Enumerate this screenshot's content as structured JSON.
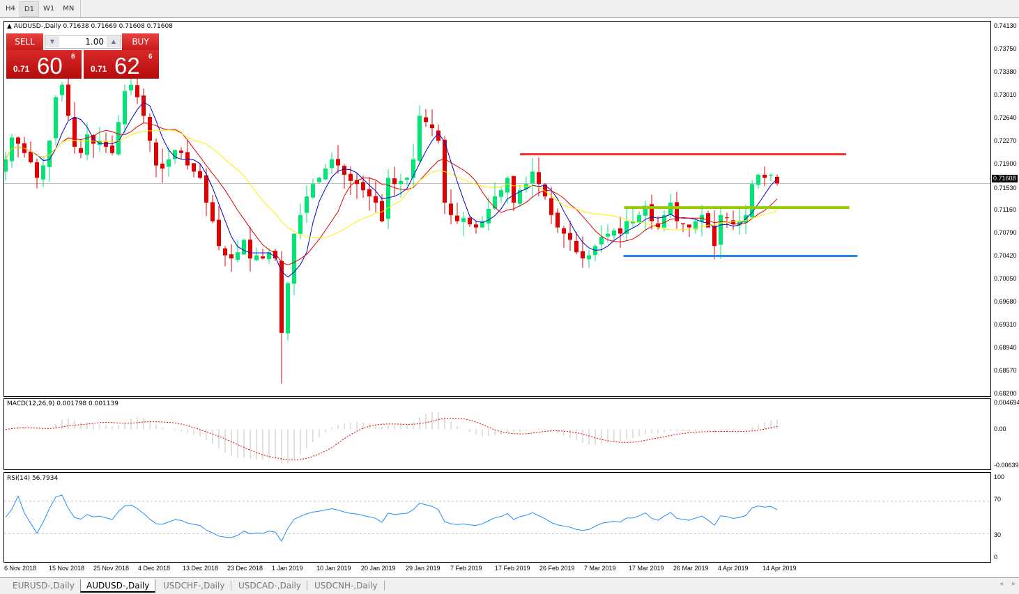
{
  "timeframes": [
    {
      "label": "H4",
      "active": false
    },
    {
      "label": "D1",
      "active": true
    },
    {
      "label": "W1",
      "active": false
    },
    {
      "label": "MN",
      "active": false
    }
  ],
  "chart": {
    "header": "AUDUSD-,Daily  0.71638 0.71669 0.71608 0.71608",
    "symbol": "AUDUSD-,Daily",
    "current_price": "0.71608"
  },
  "trade_panel": {
    "sell_label": "SELL",
    "buy_label": "BUY",
    "lot": "1.00",
    "sell": {
      "prefix": "0.71",
      "big": "60",
      "sup": "8"
    },
    "buy": {
      "prefix": "0.71",
      "big": "62",
      "sup": "6"
    }
  },
  "price_axis": [
    "0.74130",
    "0.73750",
    "0.73380",
    "0.73010",
    "0.72640",
    "0.72270",
    "0.71900",
    "0.71530",
    "0.71160",
    "0.70790",
    "0.70420",
    "0.70050",
    "0.69680",
    "0.69310",
    "0.68940",
    "0.68570",
    "0.68200"
  ],
  "macd": {
    "label": "MACD(12,26,9) 0.001798 0.001139",
    "axis": [
      "0.004694",
      "0.00",
      "-0.00639"
    ]
  },
  "rsi": {
    "label": "RSI(14) 56.7934",
    "axis": [
      "100",
      "70",
      "30",
      "0"
    ]
  },
  "time_axis": [
    "6 Nov 2018",
    "15 Nov 2018",
    "25 Nov 2018",
    "4 Dec 2018",
    "13 Dec 2018",
    "23 Dec 2018",
    "1 Jan 2019",
    "10 Jan 2019",
    "20 Jan 2019",
    "29 Jan 2019",
    "7 Feb 2019",
    "17 Feb 2019",
    "26 Feb 2019",
    "7 Mar 2019",
    "17 Mar 2019",
    "26 Mar 2019",
    "4 Apr 2019",
    "14 Apr 2019"
  ],
  "tabs": [
    {
      "label": "EURUSD-,Daily",
      "active": false
    },
    {
      "label": "AUDUSD-,Daily",
      "active": true
    },
    {
      "label": "USDCHF-,Daily",
      "active": false
    },
    {
      "label": "USDCAD-,Daily",
      "active": false
    },
    {
      "label": "USDCNH-,Daily",
      "active": false
    }
  ],
  "colors": {
    "bull": "#00e676",
    "bear": "#e00000",
    "ma_fast": "#0000cc",
    "ma_mid": "#e00000",
    "ma_slow": "#ffee00",
    "resistance": "#ff3030",
    "pivot": "#99cc00",
    "support": "#2288ee",
    "rsi": "#1e90ff"
  },
  "chart_data": {
    "type": "candlestick",
    "closes": [
      0.72,
      0.7235,
      0.7225,
      0.721,
      0.7195,
      0.717,
      0.719,
      0.723,
      0.73,
      0.732,
      0.727,
      0.722,
      0.721,
      0.724,
      0.7225,
      0.723,
      0.722,
      0.721,
      0.726,
      0.731,
      0.732,
      0.73,
      0.727,
      0.723,
      0.719,
      0.7185,
      0.72,
      0.7215,
      0.721,
      0.719,
      0.718,
      0.717,
      0.713,
      0.71,
      0.706,
      0.7045,
      0.704,
      0.705,
      0.707,
      0.704,
      0.7045,
      0.704,
      0.705,
      0.704,
      0.692,
      0.7,
      0.708,
      0.711,
      0.714,
      0.716,
      0.717,
      0.7185,
      0.72,
      0.719,
      0.7175,
      0.7165,
      0.716,
      0.715,
      0.714,
      0.713,
      0.71,
      0.717,
      0.716,
      0.7165,
      0.717,
      0.72,
      0.727,
      0.726,
      0.725,
      0.723,
      0.713,
      0.711,
      0.71,
      0.7105,
      0.7095,
      0.709,
      0.71,
      0.712,
      0.714,
      0.715,
      0.717,
      0.713,
      0.715,
      0.716,
      0.718,
      0.716,
      0.714,
      0.711,
      0.709,
      0.708,
      0.707,
      0.705,
      0.704,
      0.7045,
      0.706,
      0.7075,
      0.708,
      0.7085,
      0.708,
      0.71,
      0.71,
      0.711,
      0.7125,
      0.71,
      0.709,
      0.711,
      0.713,
      0.71,
      0.7095,
      0.709,
      0.71,
      0.711,
      0.709,
      0.706,
      0.711,
      0.7105,
      0.7095,
      0.71,
      0.711,
      0.716,
      0.7175,
      0.717,
      0.7175,
      0.7161
    ],
    "ylim": [
      0.682,
      0.7413
    ],
    "hlines": [
      {
        "price": 0.7208,
        "color": "#ff3030"
      },
      {
        "price": 0.7122,
        "color": "#99cc00"
      },
      {
        "price": 0.7044,
        "color": "#2288ee"
      }
    ]
  }
}
